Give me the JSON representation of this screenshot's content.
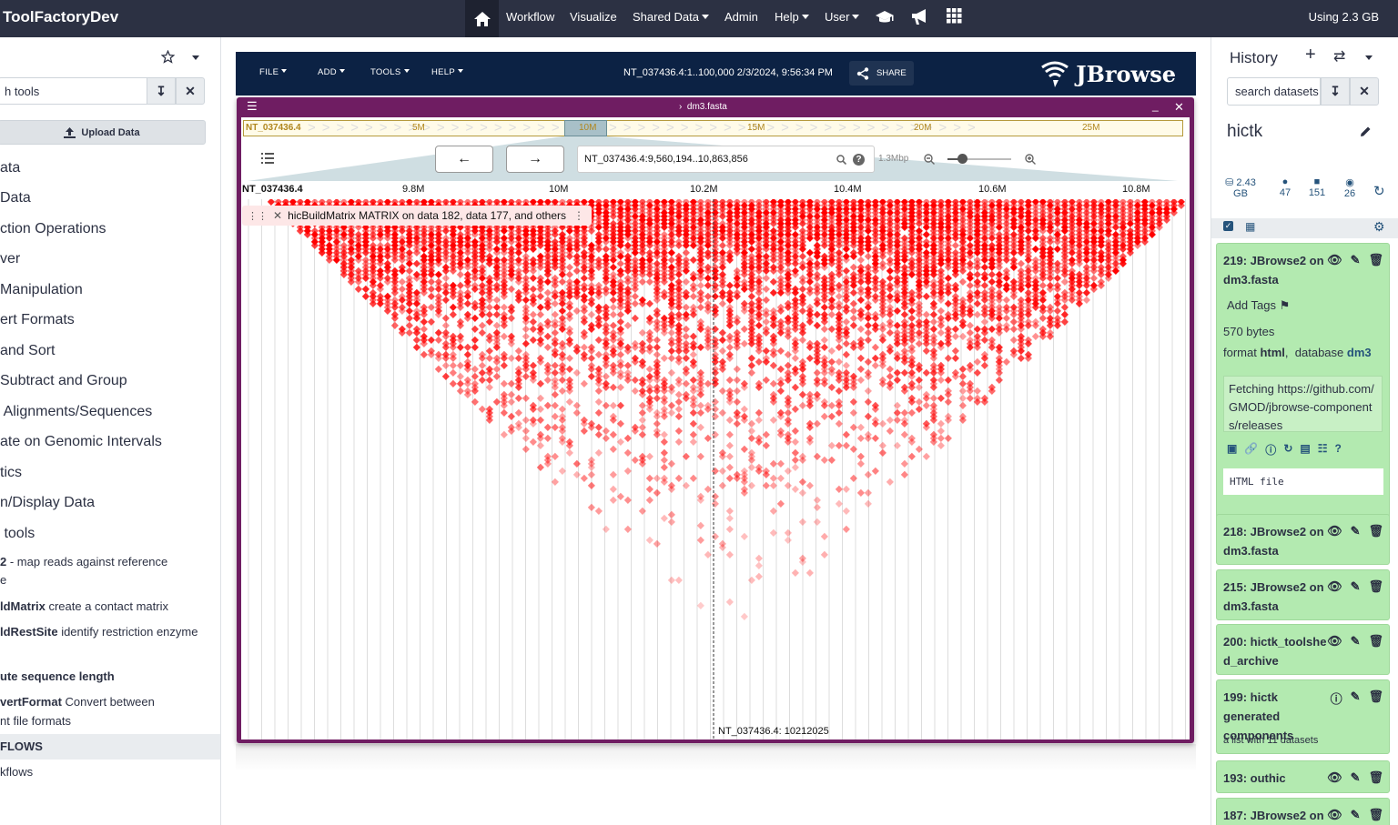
{
  "topnav": {
    "brand": "ToolFactoryDev",
    "items": [
      {
        "label": "Workflow",
        "caret": false
      },
      {
        "label": "Visualize",
        "caret": false
      },
      {
        "label": "Shared Data",
        "caret": true
      },
      {
        "label": "Admin",
        "caret": false
      },
      {
        "label": "Help",
        "caret": true
      },
      {
        "label": "User",
        "caret": true
      }
    ],
    "quota": "Using 2.3 GB"
  },
  "tool_panel": {
    "search_value": "h tools",
    "upload_label": "Upload Data",
    "sections": [
      "ata",
      "Data",
      "ction Operations",
      "ver",
      "Manipulation",
      "ert Formats",
      "and Sort",
      "Subtract and Group",
      " Alignments/Sequences",
      "ate on Genomic Intervals",
      "tics",
      "n/Display Data",
      " tools"
    ],
    "tools": [
      {
        "name": "2",
        "desc": " - map reads against reference",
        "cont": "e"
      },
      {
        "name": "ldMatrix",
        "desc": " create a contact matrix",
        "cont": ""
      },
      {
        "name": "ldRestSite",
        "desc": " identify restriction enzyme",
        "cont": ""
      },
      {
        "name": "ute sequence length",
        "desc": "",
        "cont": ""
      },
      {
        "name": "vertFormat",
        "desc": " Convert between",
        "cont": "nt file formats"
      }
    ],
    "workflows_header": "FLOWS",
    "workflows_link": "kflows"
  },
  "jbrowse": {
    "menus": [
      "FILE",
      "ADD",
      "TOOLS",
      "HELP"
    ],
    "session": "NT_037436.4:1..100,000 2/3/2024, 9:56:34 PM",
    "share": "SHARE",
    "logo": "JBrowse",
    "view_title": "dm3.fasta",
    "overview": {
      "refname": "NT_037436.4",
      "ticks": [
        "5M",
        "10M",
        "15M",
        "20M",
        "25M"
      ]
    },
    "locstring": "NT_037436.4:9,560,194..10,863,856",
    "scale": "1.3Mbp",
    "ruler": {
      "refname": "NT_037436.4",
      "ticks": [
        "9.8M",
        "10M",
        "10.2M",
        "10.4M",
        "10.6M",
        "10.8M"
      ]
    },
    "track_label": "hicBuildMatrix MATRIX on data 182, data 177, and others",
    "cursor_label": "NT_037436.4: 10212025",
    "heatmap_color": "#ff0000"
  },
  "history": {
    "title": "History",
    "search_placeholder": "search datasets",
    "name": "hictk",
    "stats": {
      "size": "2.43",
      "size_unit": "GB",
      "shown": "47",
      "deleted": "151",
      "hidden": "26"
    },
    "expanded": {
      "title": "219: JBrowse2 on dm3.fasta",
      "add_tags": "Add Tags",
      "size": "570 bytes",
      "format_label": "format",
      "format": "html",
      "db_label": "database",
      "db": "dm3",
      "peek": "Fetching https://github.com/GMOD/jbrowse-components/releases",
      "filetype": "HTML file"
    },
    "items": [
      {
        "title": "218: JBrowse2 on dm3.fasta",
        "sub": ""
      },
      {
        "title": "215: JBrowse2 on dm3.fasta",
        "sub": ""
      },
      {
        "title": "200: hictk_toolshed_archive",
        "sub": ""
      },
      {
        "title": "199: hictk generated components",
        "sub": "a list with 11 datasets"
      },
      {
        "title": "193: outhic",
        "sub": ""
      },
      {
        "title": "187: JBrowse2 on",
        "sub": ""
      }
    ],
    "accent": "#b3eab0"
  }
}
